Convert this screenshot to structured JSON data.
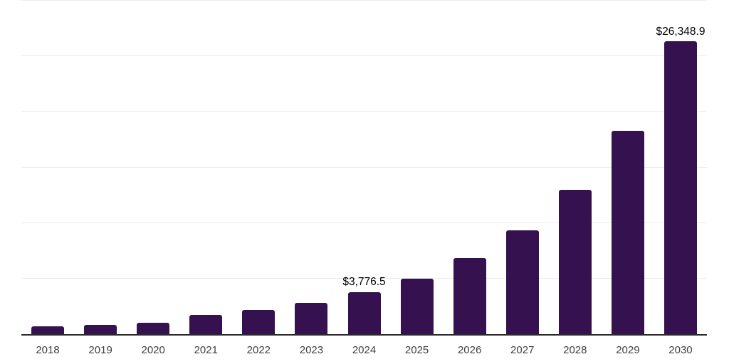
{
  "chart_data": {
    "type": "bar",
    "title": "",
    "xlabel": "",
    "ylabel": "",
    "categories": [
      "2018",
      "2019",
      "2020",
      "2021",
      "2022",
      "2023",
      "2024",
      "2025",
      "2026",
      "2027",
      "2028",
      "2029",
      "2030"
    ],
    "values": [
      720,
      850,
      1020,
      1700,
      2190,
      2830,
      3776.5,
      5000,
      6820,
      9360,
      12980,
      18300,
      26348.9
    ],
    "labeled_values": {
      "2024": 3776.5,
      "2030": 26348.9
    },
    "data_labels": {
      "2024": "$3,776.5",
      "2030": "$26,348.9"
    },
    "ylim": [
      0,
      30000
    ],
    "gridline_interval": 5000,
    "grid": true,
    "legend": "none",
    "y_axis_tick_labels_visible": false,
    "note": "values without data labels are estimated from bar heights against gridlines"
  },
  "colors": {
    "bar": "#35124f",
    "axis_line": "#2b2b2b",
    "gridline": "#ececec",
    "tick_label": "#404040",
    "data_label": "#000000",
    "background": "#ffffff"
  }
}
